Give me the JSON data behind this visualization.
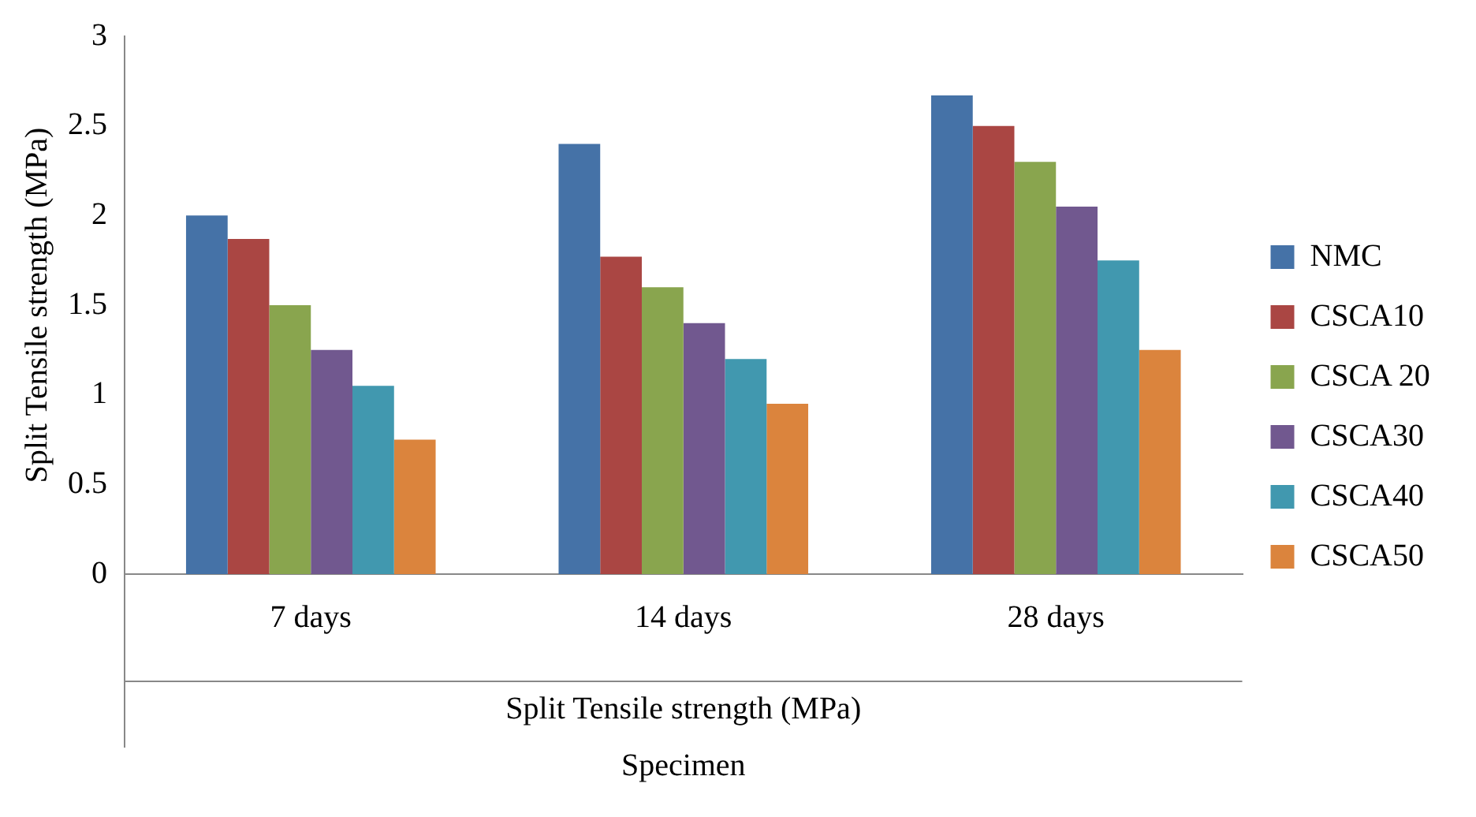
{
  "chart_data": {
    "type": "bar",
    "ylabel": "Split Tensile strength (MPa)",
    "xlabel": "Specimen",
    "annotations": [
      "Split Tensile strength (MPa)"
    ],
    "categories": [
      "7 days",
      "14 days",
      "28 days"
    ],
    "series": [
      {
        "name": "NMC",
        "color": "#4572a7",
        "values": [
          2.0,
          2.4,
          2.67
        ]
      },
      {
        "name": "CSCA10",
        "color": "#aa4643",
        "values": [
          1.87,
          1.77,
          2.5
        ]
      },
      {
        "name": "CSCA 20",
        "color": "#89a54e",
        "values": [
          1.5,
          1.6,
          2.3
        ]
      },
      {
        "name": "CSCA30",
        "color": "#71588f",
        "values": [
          1.25,
          1.4,
          2.05
        ]
      },
      {
        "name": "CSCA40",
        "color": "#4198af",
        "values": [
          1.05,
          1.2,
          1.75
        ]
      },
      {
        "name": "CSCA50",
        "color": "#db843d",
        "values": [
          0.75,
          0.95,
          1.25
        ]
      }
    ],
    "ylim": [
      0,
      3
    ],
    "yticks": [
      0,
      0.5,
      1,
      1.5,
      2,
      2.5,
      3
    ],
    "grid": false,
    "legend": "right"
  }
}
